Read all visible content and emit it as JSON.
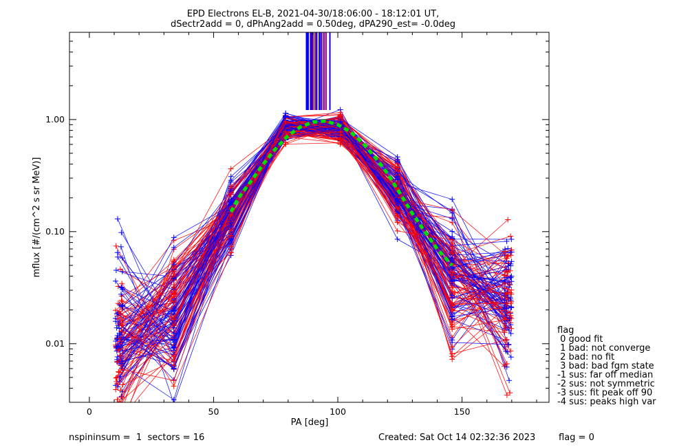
{
  "chart_data": {
    "type": "line",
    "title": "EPD Electrons EL-B, 2021-04-30/18:06:00 - 18:12:01 UT,",
    "subtitle": "dSectr2add = 0, dPhAng2add = 0.50deg, dPA290_est=  -0.0deg",
    "xlabel": "PA [deg]",
    "ylabel": "mflux [#/(cm^2 s sr MeV)]",
    "xlim": [
      -8,
      185
    ],
    "ylim": [
      0.003,
      6.0
    ],
    "yscale": "log",
    "xticks": [
      "0",
      "50",
      "100",
      "150"
    ],
    "xtick_values": [
      0,
      50,
      100,
      150
    ],
    "yticks": [
      "0.01",
      "0.10",
      "1.00"
    ],
    "ytick_values": [
      0.01,
      0.1,
      1.0
    ],
    "pa_bins": [
      11,
      12,
      34,
      57,
      79,
      101,
      124,
      146,
      168,
      169
    ],
    "median_profile": {
      "name": "",
      "color": "#00dd00",
      "x": [
        57,
        60,
        65,
        70,
        75,
        80,
        85,
        90,
        95,
        100,
        105,
        110,
        115,
        120,
        125,
        130,
        135,
        140,
        146
      ],
      "y": [
        0.15,
        0.2,
        0.28,
        0.4,
        0.55,
        0.72,
        0.86,
        0.95,
        0.97,
        0.9,
        0.78,
        0.62,
        0.46,
        0.33,
        0.22,
        0.145,
        0.1,
        0.07,
        0.05
      ]
    },
    "series_colors": {
      "blue": "#0000ff",
      "red": "#ff0000",
      "purple": "#800080"
    },
    "grid": false,
    "legend": {
      "placement": "right",
      "title": "flag",
      "entries": [
        " 0 good fit",
        " 1 bad: not converge",
        " 2 bad: no fit",
        " 3 bad: bad fgm state",
        "-1 sus: far off median",
        "-2 sus: not symmetric",
        "-3 sus: fit peak off 90",
        "-4 sus: peaks high var"
      ]
    }
  },
  "footer": {
    "left": "nspininsum =  1  sectors = 16",
    "created": "Created: Sat Oct 14 02:32:36 2023",
    "flag": "flag = 0"
  }
}
